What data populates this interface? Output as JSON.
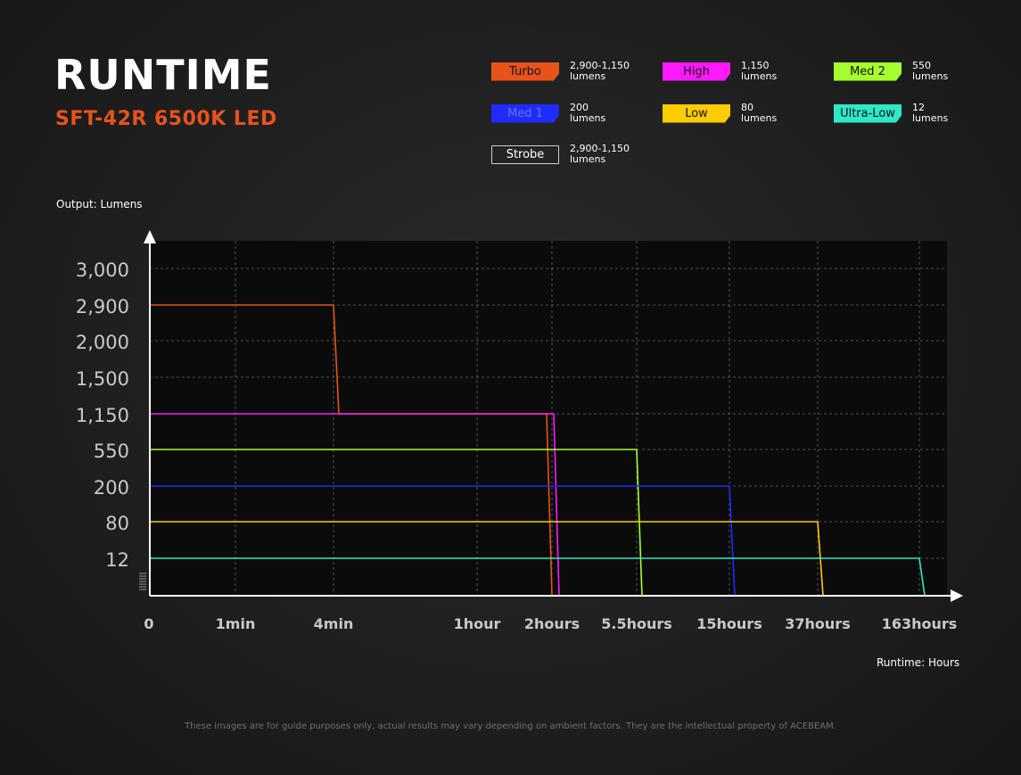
{
  "header": {
    "title": "RUNTIME",
    "subtitle": "SFT-42R 6500K LED"
  },
  "legend": [
    {
      "label": "Turbo",
      "color": "#e8531c",
      "style": "filled",
      "desc_value": "2,900-1,150",
      "desc_unit": "lumens"
    },
    {
      "label": "High",
      "color": "#ff19ff",
      "style": "filled",
      "desc_value": "1,150",
      "desc_unit": "lumens"
    },
    {
      "label": "Med 2",
      "color": "#a6ff2e",
      "style": "filled",
      "desc_value": "550",
      "desc_unit": "lumens"
    },
    {
      "label": "Med 1",
      "color": "#1f2bff",
      "style": "filled",
      "desc_value": "200",
      "desc_unit": "lumens"
    },
    {
      "label": "Low",
      "color": "#ffcc00",
      "style": "filled",
      "desc_value": "80",
      "desc_unit": "lumens"
    },
    {
      "label": "Ultra-Low",
      "color": "#2ee8c8",
      "style": "filled",
      "desc_value": "12",
      "desc_unit": "lumens"
    },
    {
      "label": "Strobe",
      "color": "#ffffff",
      "style": "outline",
      "desc_value": "2,900-1,150",
      "desc_unit": "lumens"
    }
  ],
  "axes": {
    "y_title": "Output: Lumens",
    "x_title": "Runtime: Hours"
  },
  "disclaimer": "These images are for guide purposes only, actual results may vary depending on ambient factors. They are the intellectual property of ACEBEAM.",
  "chart_data": {
    "type": "line",
    "title": "RUNTIME",
    "subtitle": "SFT-42R 6500K LED",
    "ylabel": "Output: Lumens",
    "xlabel": "Runtime: Hours",
    "x_scale": "non-linear (categorical ticks)",
    "x_ticks": [
      "0",
      "1min",
      "4min",
      "1hour",
      "2hours",
      "5.5hours",
      "15hours",
      "37hours",
      "163hours"
    ],
    "y_scale": "non-linear (categorical ticks)",
    "y_ticks": [
      "3,000",
      "2,900",
      "2,000",
      "1,500",
      "1,150",
      "550",
      "200",
      "80",
      "12"
    ],
    "grid": true,
    "series": [
      {
        "name": "Turbo",
        "color": "#e8531c",
        "points": [
          [
            "0",
            2900
          ],
          [
            "4min",
            2900
          ],
          [
            "4min",
            1150
          ],
          [
            "2hours",
            1150
          ],
          [
            "2hours",
            0
          ]
        ]
      },
      {
        "name": "High",
        "color": "#ff19ff",
        "points": [
          [
            "0",
            1150
          ],
          [
            "2hours",
            1150
          ],
          [
            "2hours",
            0
          ]
        ]
      },
      {
        "name": "Med 2",
        "color": "#a6ff2e",
        "points": [
          [
            "0",
            550
          ],
          [
            "5.5hours",
            550
          ],
          [
            "5.5hours",
            0
          ]
        ]
      },
      {
        "name": "Med 1",
        "color": "#1f2bff",
        "points": [
          [
            "0",
            200
          ],
          [
            "15hours",
            200
          ],
          [
            "15hours",
            0
          ]
        ]
      },
      {
        "name": "Low",
        "color": "#ffcc00",
        "points": [
          [
            "0",
            80
          ],
          [
            "37hours",
            80
          ],
          [
            "37hours",
            0
          ]
        ]
      },
      {
        "name": "Ultra-Low",
        "color": "#2ee8c8",
        "points": [
          [
            "0",
            12
          ],
          [
            "163hours",
            12
          ],
          [
            "163hours",
            0
          ]
        ]
      }
    ]
  }
}
